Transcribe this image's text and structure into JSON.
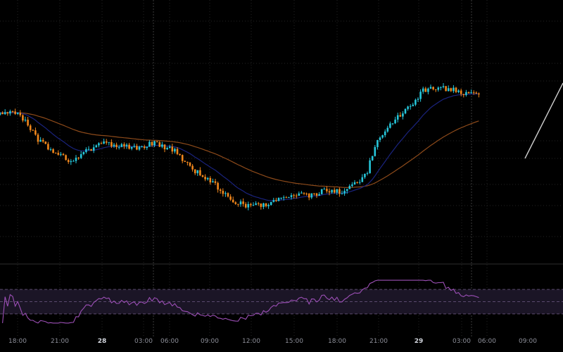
{
  "colors": {
    "background": "#000000",
    "up": "#26c6da",
    "down": "#f0861c",
    "ema_fast": "#1a237e",
    "ema_slow": "#8d4a1a",
    "rsi_line": "#9c4fb6",
    "rsi_band": "#1b1526",
    "grid": "#252525",
    "tick": "#8d8f99"
  },
  "chart_data": [
    {
      "type": "candlestick",
      "x": [
        "27 18:00",
        "27 21:00",
        "28 00:00",
        "28 03:00",
        "28 06:00",
        "28 09:00",
        "28 12:00",
        "28 15:00",
        "28 18:00",
        "28 21:00",
        "29 00:00",
        "29 03:00",
        "29 06:00",
        "29 09:00"
      ],
      "x_tick_labels": [
        "18:00",
        "21:00",
        "28",
        "03:00",
        "06:00",
        "09:00",
        "12:00",
        "15:00",
        "18:00",
        "21:00",
        "29",
        "03:00",
        "06:00",
        "09:00"
      ],
      "bold_ticks": [
        "28",
        "29"
      ],
      "price_path": [
        [
          0,
          0.78
        ],
        [
          8,
          0.8
        ],
        [
          16,
          0.62
        ],
        [
          24,
          0.52
        ],
        [
          30,
          0.48
        ],
        [
          36,
          0.56
        ],
        [
          42,
          0.6
        ],
        [
          50,
          0.58
        ],
        [
          56,
          0.57
        ],
        [
          62,
          0.6
        ],
        [
          70,
          0.55
        ],
        [
          76,
          0.44
        ],
        [
          82,
          0.38
        ],
        [
          88,
          0.3
        ],
        [
          94,
          0.22
        ],
        [
          100,
          0.19
        ],
        [
          106,
          0.2
        ],
        [
          112,
          0.24
        ],
        [
          118,
          0.27
        ],
        [
          124,
          0.26
        ],
        [
          130,
          0.3
        ],
        [
          136,
          0.28
        ],
        [
          142,
          0.34
        ],
        [
          146,
          0.42
        ],
        [
          150,
          0.62
        ],
        [
          156,
          0.74
        ],
        [
          162,
          0.82
        ],
        [
          168,
          0.94
        ],
        [
          174,
          0.96
        ],
        [
          180,
          0.94
        ],
        [
          186,
          0.915
        ],
        [
          190,
          0.91
        ]
      ],
      "candle_count": 190,
      "ema_fast_period": 9,
      "ema_slow_period": 21
    },
    {
      "type": "line",
      "name": "",
      "ylim": [
        0,
        100
      ],
      "band": [
        30,
        70
      ],
      "midline": 50,
      "period": 14
    }
  ],
  "annotations": {
    "trend_line": true
  }
}
